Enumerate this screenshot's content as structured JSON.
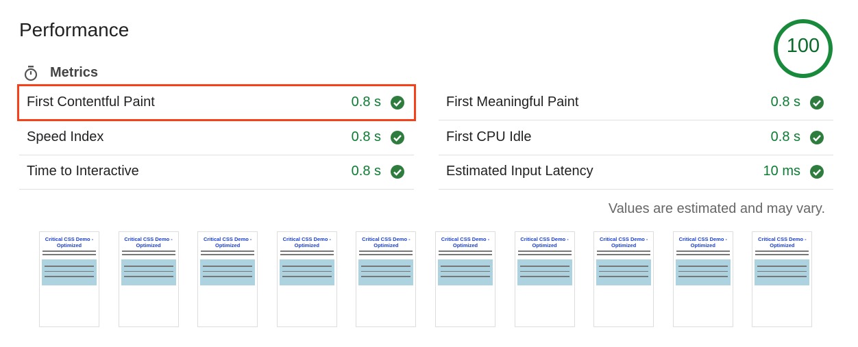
{
  "header": {
    "title": "Performance",
    "score": "100"
  },
  "section": {
    "title": "Metrics"
  },
  "metrics": [
    {
      "label": "First Contentful Paint",
      "value": "0.8 s"
    },
    {
      "label": "First Meaningful Paint",
      "value": "0.8 s"
    },
    {
      "label": "Speed Index",
      "value": "0.8 s"
    },
    {
      "label": "First CPU Idle",
      "value": "0.8 s"
    },
    {
      "label": "Time to Interactive",
      "value": "0.8 s"
    },
    {
      "label": "Estimated Input Latency",
      "value": "10 ms"
    }
  ],
  "note": "Values are estimated and may vary.",
  "filmstrip": [
    {
      "title": "Critical CSS Demo - Optimized"
    },
    {
      "title": "Critical CSS Demo - Optimized"
    },
    {
      "title": "Critical CSS Demo - Optimized"
    },
    {
      "title": "Critical CSS Demo - Optimized"
    },
    {
      "title": "Critical CSS Demo - Optimized"
    },
    {
      "title": "Critical CSS Demo - Optimized"
    },
    {
      "title": "Critical CSS Demo - Optimized"
    },
    {
      "title": "Critical CSS Demo - Optimized"
    },
    {
      "title": "Critical CSS Demo - Optimized"
    },
    {
      "title": "Critical CSS Demo - Optimized"
    }
  ]
}
